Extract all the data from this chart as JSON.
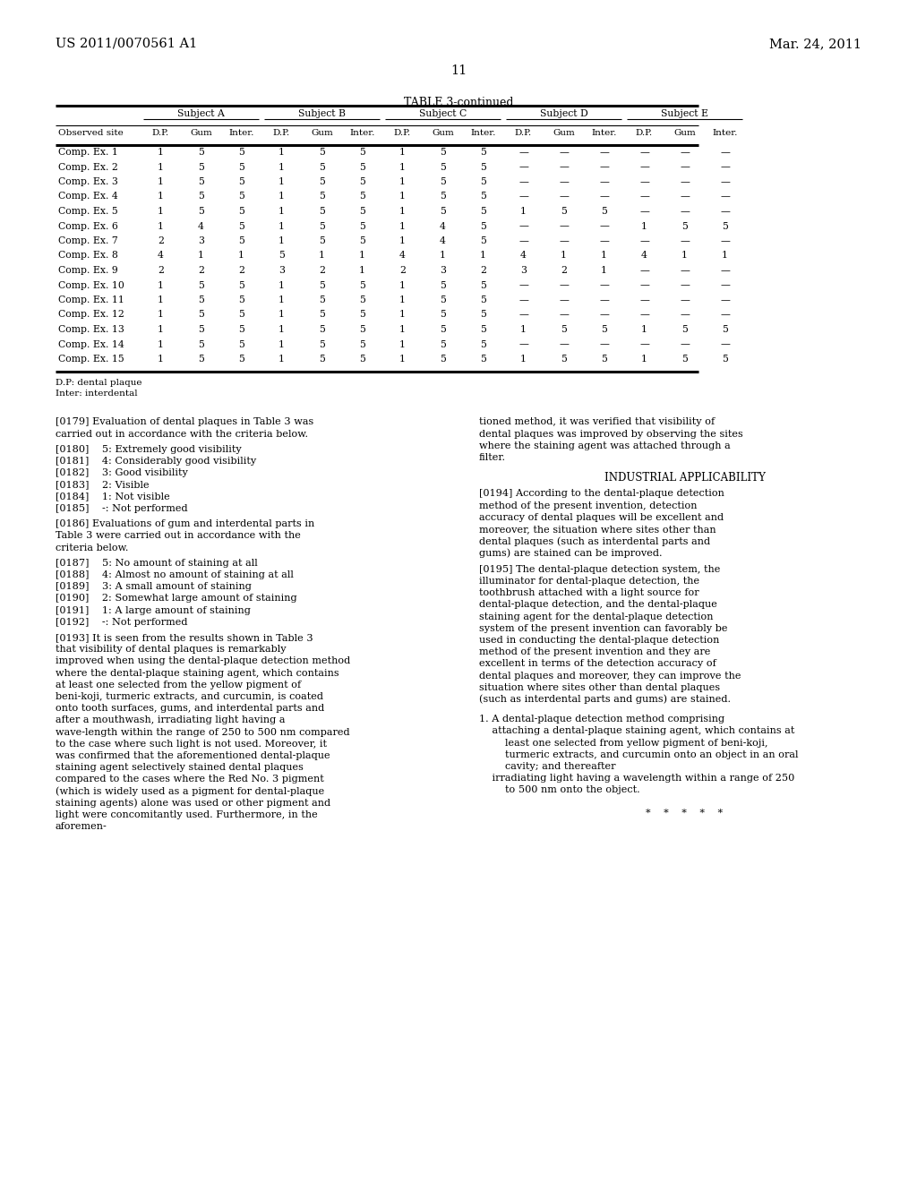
{
  "bg_color": "#ffffff",
  "header_left": "US 2011/0070561 A1",
  "header_right": "Mar. 24, 2011",
  "page_number": "11",
  "table_title": "TABLE 3-continued",
  "col_groups": [
    "Subject A",
    "Subject B",
    "Subject C",
    "Subject D",
    "Subject E"
  ],
  "row_header": "Observed site",
  "rows": [
    [
      "Comp. Ex. 1",
      "1",
      "5",
      "5",
      "1",
      "5",
      "5",
      "1",
      "5",
      "5",
      "—",
      "—",
      "—",
      "—",
      "—",
      "—"
    ],
    [
      "Comp. Ex. 2",
      "1",
      "5",
      "5",
      "1",
      "5",
      "5",
      "1",
      "5",
      "5",
      "—",
      "—",
      "—",
      "—",
      "—",
      "—"
    ],
    [
      "Comp. Ex. 3",
      "1",
      "5",
      "5",
      "1",
      "5",
      "5",
      "1",
      "5",
      "5",
      "—",
      "—",
      "—",
      "—",
      "—",
      "—"
    ],
    [
      "Comp. Ex. 4",
      "1",
      "5",
      "5",
      "1",
      "5",
      "5",
      "1",
      "5",
      "5",
      "—",
      "—",
      "—",
      "—",
      "—",
      "—"
    ],
    [
      "Comp. Ex. 5",
      "1",
      "5",
      "5",
      "1",
      "5",
      "5",
      "1",
      "5",
      "5",
      "1",
      "5",
      "5",
      "—",
      "—",
      "—"
    ],
    [
      "Comp. Ex. 6",
      "1",
      "4",
      "5",
      "1",
      "5",
      "5",
      "1",
      "4",
      "5",
      "—",
      "—",
      "—",
      "1",
      "5",
      "5"
    ],
    [
      "Comp. Ex. 7",
      "2",
      "3",
      "5",
      "1",
      "5",
      "5",
      "1",
      "4",
      "5",
      "—",
      "—",
      "—",
      "—",
      "—",
      "—"
    ],
    [
      "Comp. Ex. 8",
      "4",
      "1",
      "1",
      "5",
      "1",
      "1",
      "4",
      "1",
      "1",
      "4",
      "1",
      "1",
      "4",
      "1",
      "1"
    ],
    [
      "Comp. Ex. 9",
      "2",
      "2",
      "2",
      "3",
      "2",
      "1",
      "2",
      "3",
      "2",
      "3",
      "2",
      "1",
      "—",
      "—",
      "—"
    ],
    [
      "Comp. Ex. 10",
      "1",
      "5",
      "5",
      "1",
      "5",
      "5",
      "1",
      "5",
      "5",
      "—",
      "—",
      "—",
      "—",
      "—",
      "—"
    ],
    [
      "Comp. Ex. 11",
      "1",
      "5",
      "5",
      "1",
      "5",
      "5",
      "1",
      "5",
      "5",
      "—",
      "—",
      "—",
      "—",
      "—",
      "—"
    ],
    [
      "Comp. Ex. 12",
      "1",
      "5",
      "5",
      "1",
      "5",
      "5",
      "1",
      "5",
      "5",
      "—",
      "—",
      "—",
      "—",
      "—",
      "—"
    ],
    [
      "Comp. Ex. 13",
      "1",
      "5",
      "5",
      "1",
      "5",
      "5",
      "1",
      "5",
      "5",
      "1",
      "5",
      "5",
      "1",
      "5",
      "5"
    ],
    [
      "Comp. Ex. 14",
      "1",
      "5",
      "5",
      "1",
      "5",
      "5",
      "1",
      "5",
      "5",
      "—",
      "—",
      "—",
      "—",
      "—",
      "—"
    ],
    [
      "Comp. Ex. 15",
      "1",
      "5",
      "5",
      "1",
      "5",
      "5",
      "1",
      "5",
      "5",
      "1",
      "5",
      "5",
      "1",
      "5",
      "5"
    ]
  ],
  "footnote1": "D.P: dental plaque",
  "footnote2": "Inter: interdental",
  "left_paragraphs": [
    {
      "tag": "[0179]",
      "text": "Evaluation of dental plaques in Table 3 was carried out in accordance with the criteria below.",
      "long": true
    },
    {
      "tag": "[0180]",
      "text": "5: Extremely good visibility",
      "long": false
    },
    {
      "tag": "[0181]",
      "text": "4: Considerably good visibility",
      "long": false
    },
    {
      "tag": "[0182]",
      "text": "3: Good visibility",
      "long": false
    },
    {
      "tag": "[0183]",
      "text": "2: Visible",
      "long": false
    },
    {
      "tag": "[0184]",
      "text": "1: Not visible",
      "long": false
    },
    {
      "tag": "[0185]",
      "text": "-: Not performed",
      "long": false
    },
    {
      "tag": "[0186]",
      "text": "Evaluations of gum and interdental parts in Table 3 were carried out in accordance with the criteria below.",
      "long": true
    },
    {
      "tag": "[0187]",
      "text": "5: No amount of staining at all",
      "long": false
    },
    {
      "tag": "[0188]",
      "text": "4: Almost no amount of staining at all",
      "long": false
    },
    {
      "tag": "[0189]",
      "text": "3: A small amount of staining",
      "long": false
    },
    {
      "tag": "[0190]",
      "text": "2: Somewhat large amount of staining",
      "long": false
    },
    {
      "tag": "[0191]",
      "text": "1: A large amount of staining",
      "long": false
    },
    {
      "tag": "[0192]",
      "text": "-: Not performed",
      "long": false
    },
    {
      "tag": "[0193]",
      "text": "It is seen from the results shown in Table 3 that visibility of dental plaques is remarkably improved when using the dental-plaque detection method where the dental-plaque staining agent, which contains at least one selected from the yellow pigment of beni-koji, turmeric extracts, and curcumin, is coated onto tooth surfaces, gums, and interdental parts and after a mouthwash, irradiating light having a wave-length within the range of 250 to 500 nm compared to the case where such light is not used. Moreover, it was confirmed that the aforementioned dental-plaque staining agent selectively stained dental plaques compared to the cases where the Red No. 3 pigment (which is widely used as a pigment for dental-plaque staining agents) alone was used or other pigment and light were concomitantly used. Furthermore, in the aforemen-",
      "long": true
    }
  ],
  "right_col1_top": "tioned method, it was verified that visibility of dental plaques was improved by observing the sites where the staining agent was attached through a filter.",
  "right_section_title": "INDUSTRIAL APPLICABILITY",
  "right_paragraphs": [
    {
      "tag": "[0194]",
      "text": "According to the dental-plaque detection method of the present invention, detection accuracy of dental plaques will be excellent and moreover, the situation where sites other than dental plaques (such as interdental parts and gums) are stained can be improved."
    },
    {
      "tag": "[0195]",
      "text": "The dental-plaque detection system, the illuminator for dental-plaque detection, the toothbrush attached with a light source for dental-plaque detection, and the dental-plaque staining agent for the dental-plaque detection system of the present invention can favorably be used in conducting the dental-plaque detection method of the present invention and they are excellent in terms of the detection accuracy of dental plaques and moreover, they can improve the situation where sites other than dental plaques (such as interdental parts and gums) are stained."
    }
  ],
  "claim_title": "1. A dental-plaque detection method comprising",
  "claim_lines": [
    "    attaching a dental-plaque staining agent, which contains at",
    "        least one selected from yellow pigment of beni-koji,",
    "        turmeric extracts, and curcumin onto an object in an oral",
    "        cavity; and thereafter",
    "    irradiating light having a wavelength within a range of 250",
    "        to 500 nm onto the object."
  ],
  "stars": "*    *    *    *    *"
}
